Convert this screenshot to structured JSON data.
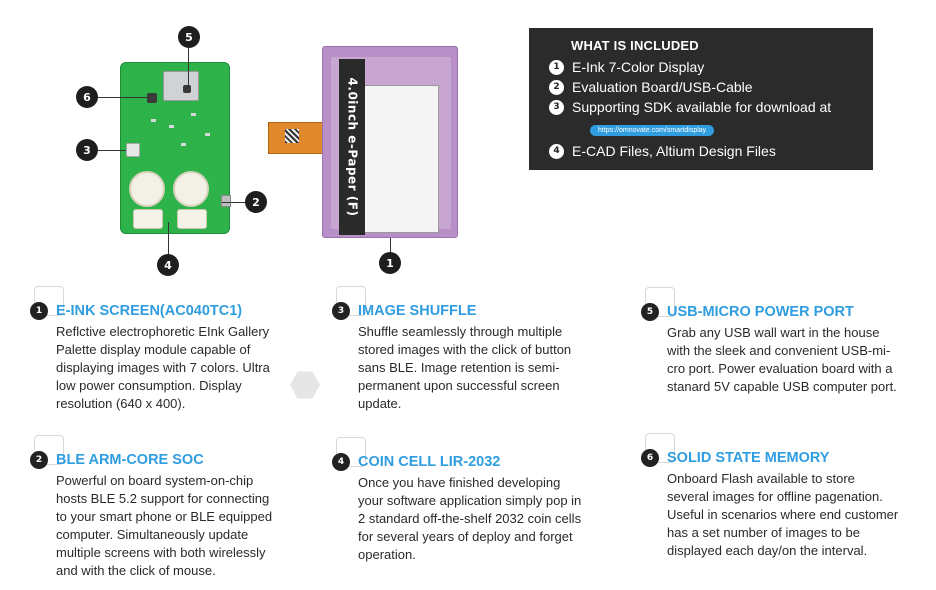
{
  "board": {
    "callouts": [
      "5",
      "6",
      "3",
      "2",
      "4"
    ],
    "epaper_callout": "1"
  },
  "epaper": {
    "label": "4.0inch e-Paper (F)"
  },
  "included": {
    "title": "WHAT IS INCLUDED",
    "items": [
      {
        "num": "1",
        "text": "E-Ink 7-Color Display"
      },
      {
        "num": "2",
        "text": "Evaluation Board/USB-Cable"
      },
      {
        "num": "3",
        "text": "Supporting SDK available for download at"
      },
      {
        "num": "4",
        "text": "E-CAD Files, Altium Design Files"
      }
    ],
    "url": "https://omnovate.com/smartdisplay"
  },
  "features": [
    {
      "num": "1",
      "title": "E-INK SCREEN(AC040TC1)",
      "lines": [
        "Reflctive electrophoretic EInk Gallery",
        "Palette display module capable of",
        "displaying images with 7 colors. Ultra",
        "low power consumption.  Display",
        "resolution (640 x 400)."
      ]
    },
    {
      "num": "2",
      "title": "BLE ARM-CORE SOC",
      "lines": [
        "Powerful on board system-on-chip",
        "hosts BLE 5.2 support for connecting",
        "to your smart phone or BLE equipped",
        "computer.  Simultaneously update",
        "multiple screens with both wirelessly",
        "and with the click of mouse."
      ]
    },
    {
      "num": "3",
      "title": "IMAGE SHUFFLE",
      "lines": [
        "Shuffle seamlessly through multiple",
        "stored images with the click of button",
        "sans BLE.  Image retention is semi-",
        "permanent upon successful screen",
        "update."
      ]
    },
    {
      "num": "4",
      "title": "COIN CELL LIR-2032",
      "lines": [
        "Once you have finished developing",
        "your software application simply pop in",
        "2 standard off-the-shelf 2032 coin cells",
        "for several years of deploy and forget",
        "operation."
      ]
    },
    {
      "num": "5",
      "title": "USB-MICRO POWER PORT",
      "lines": [
        "Grab any USB wall wart in the house",
        "with the sleek and convenient USB-mi-",
        "cro port.  Power evaluation board with a",
        "stanard 5V capable USB computer port."
      ]
    },
    {
      "num": "6",
      "title": "SOLID STATE MEMORY",
      "lines": [
        "Onboard Flash available to store",
        "several images for offline pagenation.",
        "Useful in scenarios where end customer",
        "has a set number of images to be",
        "displayed each day/on the interval."
      ]
    }
  ]
}
